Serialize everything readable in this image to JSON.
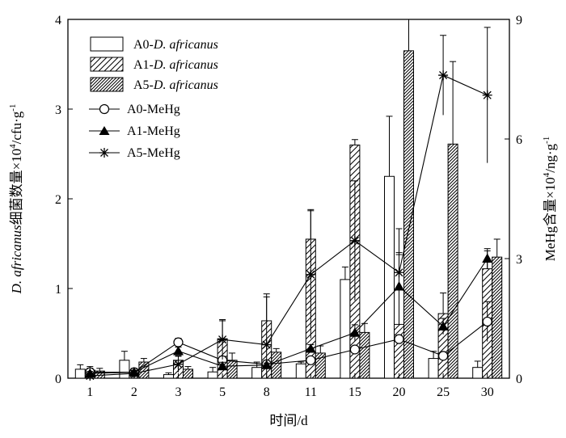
{
  "chart_data": {
    "type": "bar",
    "title": "",
    "xlabel": "时间/d",
    "ylabel_left": {
      "italic": "D. africanus",
      "rest": "细菌数量×10",
      "sup": "4",
      "unit": "/cfu·g",
      "unit_sup": "-1"
    },
    "ylabel_right": {
      "rest": "MeHg含量×10",
      "sup": "4",
      "unit": "/ng·g",
      "unit_sup": "-1"
    },
    "categories": [
      "1",
      "2",
      "3",
      "5",
      "8",
      "11",
      "15",
      "20",
      "25",
      "30"
    ],
    "ylim_left": [
      0,
      4
    ],
    "yticks_left": [
      "0",
      "1",
      "2",
      "3",
      "4"
    ],
    "ylim_right": [
      0,
      9
    ],
    "yticks_right": [
      "0",
      "3",
      "6",
      "9"
    ],
    "grid": false,
    "legend_position": "top-left",
    "bar_series": [
      {
        "legend_prefix": "A0-",
        "legend_italic": "D. africanus",
        "pattern": "open",
        "values": [
          0.1,
          0.2,
          0.04,
          0.07,
          0.12,
          0.16,
          1.1,
          2.25,
          0.22,
          0.12
        ],
        "errors": [
          0.05,
          0.1,
          0.02,
          0.05,
          0.06,
          0.02,
          0.14,
          0.67,
          0.08,
          0.07
        ]
      },
      {
        "legend_prefix": "A1-",
        "legend_italic": "D. africanus",
        "pattern": "wide-hatch",
        "values": [
          0.09,
          0.07,
          0.2,
          0.44,
          0.64,
          1.55,
          2.6,
          0.6,
          0.72,
          1.22
        ],
        "errors": [
          0.04,
          0.04,
          0.05,
          0.2,
          0.3,
          0.33,
          0.06,
          0.8,
          0.23,
          0.2
        ]
      },
      {
        "legend_prefix": "A5-",
        "legend_italic": "D. africanus",
        "pattern": "dense-hatch",
        "values": [
          0.08,
          0.18,
          0.1,
          0.2,
          0.29,
          0.28,
          0.51,
          3.65,
          2.61,
          1.35
        ],
        "errors": [
          0.03,
          0.04,
          0.03,
          0.08,
          0.04,
          0.08,
          0.1,
          0.6,
          0.92,
          0.2
        ]
      }
    ],
    "line_series": [
      {
        "name": "A0-MeHg",
        "marker": "open-circle",
        "values": [
          0.15,
          0.15,
          0.9,
          0.45,
          0.35,
          0.45,
          0.72,
          0.98,
          0.56,
          1.42
        ],
        "errors": [
          0.1,
          0.05,
          0.1,
          0.1,
          0.05,
          0.05,
          0.05,
          0.1,
          0.1,
          0.5
        ]
      },
      {
        "name": "A1-MeHg",
        "marker": "filled-triangle",
        "values": [
          0.12,
          0.15,
          0.68,
          0.3,
          0.33,
          0.74,
          1.14,
          2.3,
          1.3,
          3.0
        ],
        "errors": [
          0.05,
          0.05,
          0.1,
          0.1,
          0.05,
          0.1,
          0.2,
          0.8,
          0.2,
          0.25
        ]
      },
      {
        "name": "A5-MeHg",
        "marker": "asterisk",
        "values": [
          0.06,
          0.12,
          0.35,
          0.97,
          0.84,
          2.6,
          3.45,
          2.65,
          7.6,
          7.1
        ],
        "errors": [
          0.05,
          0.05,
          0.2,
          0.5,
          1.2,
          1.6,
          1.5,
          1.1,
          1.0,
          1.7
        ]
      }
    ]
  }
}
